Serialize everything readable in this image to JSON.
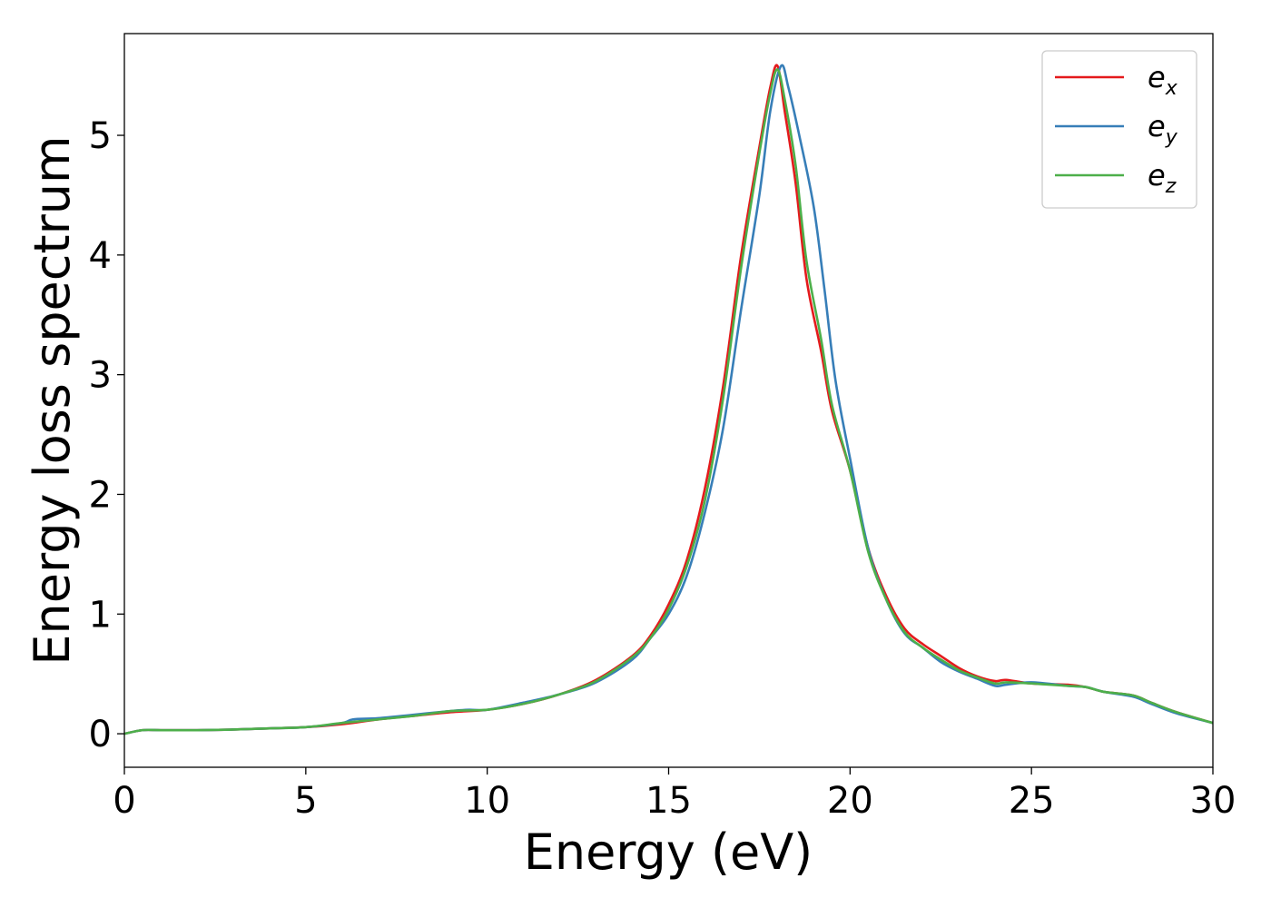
{
  "chart_data": {
    "type": "line",
    "title": "",
    "xlabel": "Energy (eV)",
    "ylabel": "Energy loss spectrum",
    "xlim": [
      0,
      30
    ],
    "ylim": [
      -0.28,
      5.85
    ],
    "xticks": [
      0,
      5,
      10,
      15,
      20,
      25,
      30
    ],
    "yticks": [
      0,
      1,
      2,
      3,
      4,
      5
    ],
    "grid": false,
    "legend_position": "top-right",
    "series": [
      {
        "name": "e_x",
        "legend_base": "e",
        "legend_sub": "x",
        "color": "#e41a1c",
        "x": [
          0,
          0.5,
          1,
          2,
          3,
          4,
          5,
          6,
          7,
          8,
          9,
          10,
          11,
          12,
          13,
          14,
          14.5,
          15,
          15.5,
          16,
          16.5,
          17,
          17.5,
          17.8,
          18.0,
          18.2,
          18.5,
          18.8,
          19.2,
          19.5,
          20,
          20.5,
          21,
          21.5,
          22,
          22.5,
          23,
          23.5,
          24,
          24.3,
          25,
          26,
          26.5,
          27,
          27.8,
          28.3,
          29,
          30
        ],
        "y": [
          0.0,
          0.03,
          0.03,
          0.03,
          0.035,
          0.045,
          0.055,
          0.08,
          0.12,
          0.15,
          0.18,
          0.2,
          0.25,
          0.33,
          0.45,
          0.65,
          0.82,
          1.08,
          1.45,
          2.05,
          2.9,
          4.0,
          4.9,
          5.4,
          5.58,
          5.2,
          4.6,
          3.8,
          3.2,
          2.7,
          2.2,
          1.55,
          1.15,
          0.88,
          0.75,
          0.65,
          0.55,
          0.48,
          0.44,
          0.45,
          0.42,
          0.41,
          0.39,
          0.35,
          0.32,
          0.26,
          0.18,
          0.09
        ]
      },
      {
        "name": "e_y",
        "legend_base": "e",
        "legend_sub": "y",
        "color": "#377eb8",
        "x": [
          0,
          0.5,
          1,
          2,
          3,
          4,
          5,
          6,
          6.3,
          7,
          8,
          9,
          9.5,
          10,
          11,
          12,
          13,
          14,
          14.5,
          15,
          15.5,
          16,
          16.5,
          17,
          17.5,
          17.8,
          18.1,
          18.3,
          18.6,
          19.0,
          19.3,
          19.6,
          20,
          20.5,
          21,
          21.5,
          22,
          22.5,
          23,
          23.5,
          24,
          24.3,
          25,
          26,
          26.5,
          27,
          27.8,
          28.3,
          29,
          30
        ],
        "y": [
          0.0,
          0.03,
          0.03,
          0.03,
          0.035,
          0.045,
          0.055,
          0.09,
          0.12,
          0.13,
          0.16,
          0.19,
          0.2,
          0.2,
          0.26,
          0.33,
          0.43,
          0.62,
          0.8,
          1.0,
          1.32,
          1.85,
          2.55,
          3.55,
          4.5,
          5.2,
          5.58,
          5.4,
          5.0,
          4.4,
          3.7,
          2.95,
          2.3,
          1.55,
          1.12,
          0.84,
          0.72,
          0.6,
          0.52,
          0.46,
          0.4,
          0.41,
          0.43,
          0.4,
          0.39,
          0.35,
          0.31,
          0.25,
          0.17,
          0.09
        ]
      },
      {
        "name": "e_z",
        "legend_base": "e",
        "legend_sub": "z",
        "color": "#4daf4a",
        "x": [
          0,
          0.5,
          1,
          2,
          3,
          4,
          5,
          6,
          7,
          8,
          9,
          10,
          11,
          12,
          13,
          14,
          14.5,
          15,
          15.5,
          16,
          16.5,
          17,
          17.5,
          17.8,
          18.0,
          18.2,
          18.5,
          18.8,
          19.2,
          19.5,
          20,
          20.5,
          21,
          21.5,
          22,
          22.5,
          23,
          23.5,
          24,
          24.3,
          25,
          26,
          26.5,
          27,
          27.8,
          28.3,
          29,
          30
        ],
        "y": [
          0.0,
          0.03,
          0.03,
          0.03,
          0.035,
          0.045,
          0.055,
          0.09,
          0.12,
          0.15,
          0.19,
          0.2,
          0.25,
          0.33,
          0.44,
          0.64,
          0.8,
          1.04,
          1.4,
          1.95,
          2.8,
          3.9,
          4.85,
          5.35,
          5.55,
          5.3,
          4.75,
          3.95,
          3.3,
          2.75,
          2.2,
          1.52,
          1.12,
          0.85,
          0.72,
          0.62,
          0.53,
          0.47,
          0.42,
          0.43,
          0.42,
          0.4,
          0.39,
          0.35,
          0.32,
          0.26,
          0.18,
          0.09
        ]
      }
    ]
  }
}
